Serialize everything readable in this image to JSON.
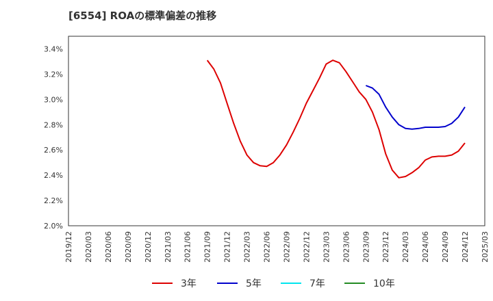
{
  "chart_data": {
    "type": "line",
    "title": "[6554]  ROAの標準偏差の推移",
    "xlabel": "",
    "ylabel": "",
    "x_ticks": [
      "2019/12",
      "2020/03",
      "2020/06",
      "2020/09",
      "2020/12",
      "2021/03",
      "2021/06",
      "2021/09",
      "2021/12",
      "2022/03",
      "2022/06",
      "2022/09",
      "2022/12",
      "2023/03",
      "2023/06",
      "2023/09",
      "2023/12",
      "2024/03",
      "2024/06",
      "2024/09",
      "2024/12",
      "2025/03"
    ],
    "y_ticks": [
      "2.0%",
      "2.2%",
      "2.4%",
      "2.6%",
      "2.8%",
      "3.0%",
      "3.2%",
      "3.4%"
    ],
    "ylim": [
      2.0,
      3.5
    ],
    "grid": true,
    "legend_position": "bottom",
    "series": [
      {
        "name": "3年",
        "color": "#dd0000",
        "points": [
          [
            "2021/09",
            3.31
          ],
          [
            "2021/10",
            3.24
          ],
          [
            "2021/11",
            3.13
          ],
          [
            "2021/12",
            2.97
          ],
          [
            "2022/01",
            2.81
          ],
          [
            "2022/02",
            2.67
          ],
          [
            "2022/03",
            2.56
          ],
          [
            "2022/04",
            2.5
          ],
          [
            "2022/05",
            2.475
          ],
          [
            "2022/06",
            2.47
          ],
          [
            "2022/07",
            2.5
          ],
          [
            "2022/08",
            2.56
          ],
          [
            "2022/09",
            2.64
          ],
          [
            "2022/10",
            2.74
          ],
          [
            "2022/11",
            2.85
          ],
          [
            "2022/12",
            2.97
          ],
          [
            "2023/01",
            3.07
          ],
          [
            "2023/02",
            3.17
          ],
          [
            "2023/03",
            3.28
          ],
          [
            "2023/04",
            3.31
          ],
          [
            "2023/05",
            3.29
          ],
          [
            "2023/06",
            3.22
          ],
          [
            "2023/07",
            3.14
          ],
          [
            "2023/08",
            3.06
          ],
          [
            "2023/09",
            3.0
          ],
          [
            "2023/10",
            2.9
          ],
          [
            "2023/11",
            2.76
          ],
          [
            "2023/12",
            2.57
          ],
          [
            "2024/01",
            2.44
          ],
          [
            "2024/02",
            2.38
          ],
          [
            "2024/03",
            2.39
          ],
          [
            "2024/04",
            2.42
          ],
          [
            "2024/05",
            2.46
          ],
          [
            "2024/06",
            2.52
          ],
          [
            "2024/07",
            2.545
          ],
          [
            "2024/08",
            2.55
          ],
          [
            "2024/09",
            2.55
          ],
          [
            "2024/10",
            2.56
          ],
          [
            "2024/11",
            2.59
          ],
          [
            "2024/12",
            2.655
          ]
        ]
      },
      {
        "name": "5年",
        "color": "#0000cc",
        "points": [
          [
            "2023/09",
            3.11
          ],
          [
            "2023/10",
            3.09
          ],
          [
            "2023/11",
            3.04
          ],
          [
            "2023/12",
            2.94
          ],
          [
            "2024/01",
            2.86
          ],
          [
            "2024/02",
            2.8
          ],
          [
            "2024/03",
            2.77
          ],
          [
            "2024/04",
            2.765
          ],
          [
            "2024/05",
            2.77
          ],
          [
            "2024/06",
            2.78
          ],
          [
            "2024/07",
            2.78
          ],
          [
            "2024/08",
            2.78
          ],
          [
            "2024/09",
            2.785
          ],
          [
            "2024/10",
            2.81
          ],
          [
            "2024/11",
            2.86
          ],
          [
            "2024/12",
            2.94
          ]
        ]
      },
      {
        "name": "7年",
        "color": "#00e5ee",
        "points": []
      },
      {
        "name": "10年",
        "color": "#228b22",
        "points": []
      }
    ]
  }
}
